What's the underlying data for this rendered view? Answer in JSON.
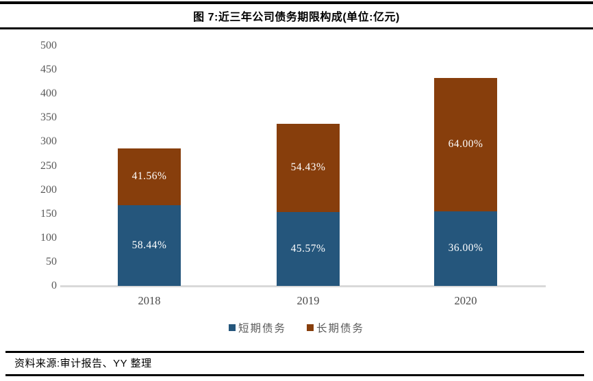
{
  "header": {
    "title": "图 7:近三年公司债务期限构成(单位:亿元)"
  },
  "footer": {
    "source_label": "资料来源:审计报告、YY 整理"
  },
  "colors": {
    "short_term_blue": "#25567C",
    "long_term_brown": "#873E0C",
    "axis_line": "#D9D9D9",
    "tick_text": "#595959",
    "bar_label_text": "#FFFFFF",
    "rule_black": "#000000"
  },
  "chart_data": {
    "type": "bar",
    "stacked": true,
    "title": "图 7:近三年公司债务期限构成(单位:亿元)",
    "unit": "亿元",
    "categories": [
      "2018",
      "2019",
      "2020"
    ],
    "series": [
      {
        "name": "短期债务",
        "color": "#25567C",
        "values": [
          167.7,
          154.0,
          155.9
        ],
        "percent_labels": [
          "58.44%",
          "45.57%",
          "36.00%"
        ]
      },
      {
        "name": "长期债务",
        "color": "#873E0C",
        "values": [
          119.2,
          184.0,
          277.1
        ],
        "percent_labels": [
          "41.56%",
          "54.43%",
          "64.00%"
        ]
      }
    ],
    "totals": [
      286.9,
      338.0,
      433.0
    ],
    "ylim": [
      0,
      500
    ],
    "yticks": [
      0,
      50,
      100,
      150,
      200,
      250,
      300,
      350,
      400,
      450,
      500
    ],
    "grid": false,
    "legend_position": "bottom"
  }
}
